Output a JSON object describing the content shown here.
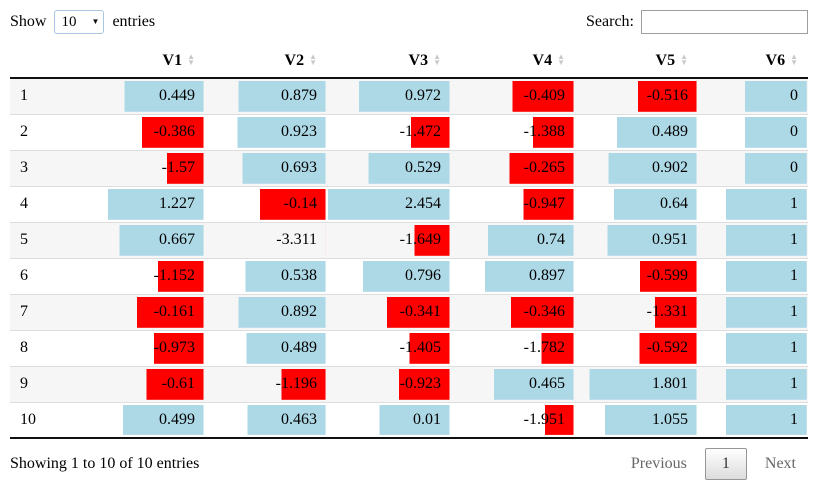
{
  "controls": {
    "show_label": "Show",
    "entries_label": "entries",
    "page_length": "10",
    "search_label": "Search:",
    "search_value": ""
  },
  "table": {
    "columns": [
      "V1",
      "V2",
      "V3",
      "V4",
      "V5",
      "V6"
    ],
    "rows": [
      {
        "name": "1",
        "values": [
          "0.449",
          "0.879",
          "0.972",
          "-0.409",
          "-0.516",
          "0"
        ]
      },
      {
        "name": "2",
        "values": [
          "-0.386",
          "0.923",
          "-1.472",
          "-1.388",
          "0.489",
          "0"
        ]
      },
      {
        "name": "3",
        "values": [
          "-1.57",
          "0.693",
          "0.529",
          "-0.265",
          "0.902",
          "0"
        ]
      },
      {
        "name": "4",
        "values": [
          "1.227",
          "-0.14",
          "2.454",
          "-0.947",
          "0.64",
          "1"
        ]
      },
      {
        "name": "5",
        "values": [
          "0.667",
          "-3.311",
          "-1.649",
          "0.74",
          "0.951",
          "1"
        ]
      },
      {
        "name": "6",
        "values": [
          "-1.152",
          "0.538",
          "0.796",
          "0.897",
          "-0.599",
          "1"
        ]
      },
      {
        "name": "7",
        "values": [
          "-0.161",
          "0.892",
          "-0.341",
          "-0.346",
          "-1.331",
          "1"
        ]
      },
      {
        "name": "8",
        "values": [
          "-0.973",
          "0.489",
          "-1.405",
          "-1.782",
          "-0.592",
          "1"
        ]
      },
      {
        "name": "9",
        "values": [
          "-0.61",
          "-1.196",
          "-0.923",
          "0.465",
          "1.801",
          "1"
        ]
      },
      {
        "name": "10",
        "values": [
          "0.499",
          "0.463",
          "0.01",
          "-1.951",
          "1.055",
          "1"
        ]
      }
    ]
  },
  "styling": {
    "bar_min": -3.311,
    "bar_max": 2.454,
    "positive_bar_color": "#ADD8E6",
    "negative_bar_color": "#FF0000"
  },
  "footer": {
    "info": "Showing 1 to 10 of 10 entries",
    "previous_label": "Previous",
    "current_page": "1",
    "next_label": "Next"
  }
}
